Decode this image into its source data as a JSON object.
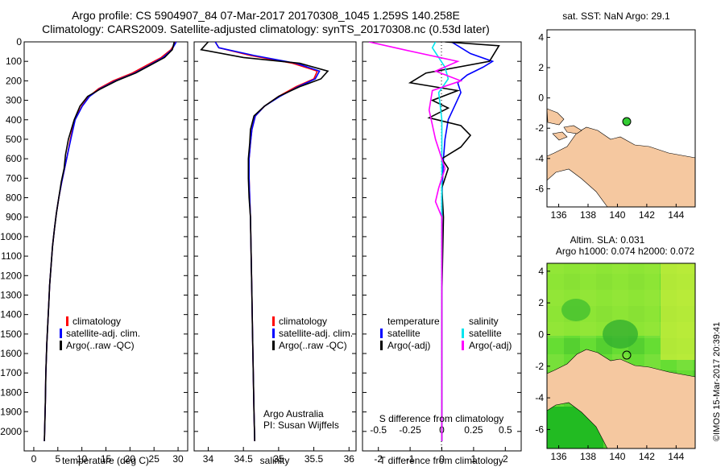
{
  "header": {
    "line1": "Argo profile: CS 5904907_84 07-Mar-2017 20170308_1045 1.259S 140.258E",
    "line2": "Climatology: CARS2009. Satellite-adjusted climatology: synTS_20170308.nc (0.53d later)"
  },
  "colors": {
    "climatology": "#ff0000",
    "satellite": "#0000ff",
    "argo": "#000000",
    "salinity_satellite": "#00e5ee",
    "salinity_argo": "#ff00ff",
    "land": "#f5c8a0",
    "argo_marker": "#33cc33"
  },
  "chart_data": [
    {
      "type": "line",
      "id": "temperature",
      "xlabel": "temperature (deg C)",
      "ylabel": "",
      "xlim": [
        -2,
        32
      ],
      "ylim": [
        2100,
        0
      ],
      "x_ticks": [
        "0",
        "5",
        "10",
        "15",
        "20",
        "25",
        "30"
      ],
      "y_ticks": [
        "0",
        "100",
        "200",
        "300",
        "400",
        "500",
        "600",
        "700",
        "800",
        "900",
        "1000",
        "1100",
        "1200",
        "1300",
        "1400",
        "1500",
        "1600",
        "1700",
        "1800",
        "1900",
        "2000"
      ],
      "legend": [
        "climatology",
        "satellite-adj. clim.",
        "Argo(..raw -QC)"
      ],
      "series": [
        {
          "name": "climatology",
          "color_key": "climatology",
          "x": [
            29.4,
            29.3,
            28.5,
            26.5,
            23.5,
            20.5,
            16.5,
            13.5,
            11.5,
            10.0,
            8.5,
            7.6,
            7.0,
            6.4,
            5.8,
            5.2,
            4.7,
            4.3,
            3.9,
            3.6,
            3.3,
            3.1,
            2.9,
            2.7,
            2.5,
            2.4,
            2.3,
            2.2
          ],
          "y": [
            0,
            10,
            40,
            80,
            120,
            160,
            200,
            240,
            280,
            330,
            400,
            500,
            580,
            650,
            720,
            800,
            880,
            960,
            1050,
            1150,
            1250,
            1350,
            1450,
            1550,
            1700,
            1850,
            1950,
            2050
          ]
        },
        {
          "name": "satellite-adj. clim.",
          "color_key": "satellite",
          "x": [
            29.6,
            29.4,
            28.7,
            26.9,
            24.0,
            21.0,
            17.0,
            13.8,
            11.6,
            10.1,
            8.6,
            7.7,
            7.0,
            6.4,
            5.8,
            5.2,
            4.7,
            4.3,
            3.9,
            3.6,
            3.3,
            3.1,
            2.9,
            2.7,
            2.5,
            2.4,
            2.3,
            2.2
          ],
          "y": [
            0,
            10,
            40,
            80,
            120,
            160,
            200,
            240,
            280,
            330,
            400,
            500,
            580,
            650,
            720,
            800,
            880,
            960,
            1050,
            1150,
            1250,
            1350,
            1450,
            1550,
            1700,
            1850,
            1950,
            2050
          ]
        },
        {
          "name": "Argo(..raw -QC)",
          "color_key": "argo",
          "x": [
            29.2,
            29.1,
            28.8,
            27.2,
            24.2,
            21.2,
            17.2,
            14.0,
            11.2,
            9.6,
            8.4,
            7.2,
            6.6,
            6.3,
            5.7,
            5.2,
            4.7,
            4.3,
            3.9,
            3.6,
            3.3,
            3.1,
            2.9,
            2.7,
            2.5,
            2.4,
            2.3,
            2.2
          ],
          "y": [
            0,
            10,
            40,
            80,
            120,
            160,
            200,
            240,
            280,
            330,
            400,
            500,
            580,
            650,
            720,
            800,
            880,
            960,
            1050,
            1150,
            1250,
            1350,
            1450,
            1550,
            1700,
            1850,
            1950,
            2050
          ]
        }
      ]
    },
    {
      "type": "line",
      "id": "salinity",
      "xlabel": "salinity",
      "xlim": [
        33.8,
        36.1
      ],
      "ylim": [
        2100,
        0
      ],
      "x_ticks": [
        "34",
        "34.5",
        "35",
        "35.5",
        "36"
      ],
      "legend": [
        "climatology",
        "satellite-adj. clim.",
        "Argo(..raw -QC)"
      ],
      "annotation": [
        "Argo Australia",
        "PI: Susan Wijffels"
      ],
      "series": [
        {
          "name": "climatology",
          "color_key": "climatology",
          "x": [
            34.1,
            34.15,
            34.6,
            35.2,
            35.55,
            35.5,
            35.25,
            35.0,
            34.8,
            34.67,
            34.62,
            34.6,
            34.58,
            34.58,
            34.59,
            34.6,
            34.61,
            34.62,
            34.63,
            34.64,
            34.65,
            34.66
          ],
          "y": [
            0,
            30,
            70,
            110,
            150,
            190,
            230,
            280,
            330,
            380,
            450,
            520,
            600,
            700,
            800,
            900,
            1100,
            1300,
            1500,
            1700,
            1900,
            2050
          ]
        },
        {
          "name": "satellite-adj. clim.",
          "color_key": "satellite",
          "x": [
            34.1,
            34.15,
            34.65,
            35.25,
            35.58,
            35.52,
            35.28,
            35.02,
            34.8,
            34.67,
            34.62,
            34.6,
            34.58,
            34.58,
            34.59,
            34.6,
            34.61,
            34.62,
            34.63,
            34.64,
            34.65,
            34.66
          ],
          "y": [
            0,
            30,
            70,
            110,
            150,
            190,
            230,
            280,
            330,
            380,
            450,
            520,
            600,
            700,
            800,
            900,
            1100,
            1300,
            1500,
            1700,
            1900,
            2050
          ]
        },
        {
          "name": "Argo(..raw -QC)",
          "color_key": "argo",
          "x": [
            34.0,
            33.9,
            34.5,
            35.3,
            35.7,
            35.6,
            35.3,
            35.0,
            34.8,
            34.65,
            34.6,
            34.59,
            34.57,
            34.57,
            34.58,
            34.6,
            34.61,
            34.62,
            34.63,
            34.64,
            34.65,
            34.66
          ],
          "y": [
            0,
            40,
            80,
            110,
            150,
            190,
            230,
            280,
            330,
            380,
            450,
            520,
            600,
            700,
            800,
            900,
            1100,
            1300,
            1500,
            1700,
            1900,
            2050
          ]
        }
      ]
    },
    {
      "type": "line",
      "id": "difference",
      "xlabel": "T difference from climatology",
      "top_label": "S difference from climatology",
      "xlim": [
        -2.5,
        2.5
      ],
      "ylim": [
        2100,
        0
      ],
      "x_ticks": [
        "-2",
        "-1",
        "0",
        "1",
        "2"
      ],
      "top_ticks": [
        {
          "label": "-0.5",
          "value": -2
        },
        {
          "label": "-0.25",
          "value": -1
        },
        {
          "label": "0",
          "value": 0
        },
        {
          "label": "0.25",
          "value": 1
        },
        {
          "label": "0.5",
          "value": 2
        }
      ],
      "legend_left_title": "temperature",
      "legend_right_title": "salinity",
      "legend_left": [
        "satellite",
        "Argo(-adj)"
      ],
      "legend_right": [
        "satellite",
        "Argo(-adj)"
      ],
      "series": [
        {
          "name": "temperature satellite",
          "color_key": "satellite",
          "x": [
            0.3,
            0.5,
            0.9,
            1.6,
            1.3,
            0.8,
            0.5,
            0.6,
            0.4,
            0.2,
            0.1,
            0.05,
            0.0,
            0.0,
            0.0,
            0.0,
            0.0
          ],
          "y": [
            0,
            20,
            60,
            100,
            130,
            170,
            210,
            260,
            330,
            400,
            500,
            600,
            800,
            1000,
            1300,
            1700,
            2050
          ]
        },
        {
          "name": "temperature Argo(-adj)",
          "color_key": "argo",
          "x": [
            0.1,
            1.8,
            1.5,
            -0.5,
            -1.0,
            0.5,
            -0.3,
            0.2,
            -0.4,
            0.6,
            0.9,
            0.6,
            0.0,
            0.2,
            0.0,
            0.05,
            0.0,
            0.0
          ],
          "y": [
            0,
            20,
            100,
            160,
            210,
            250,
            300,
            340,
            390,
            430,
            480,
            540,
            600,
            650,
            750,
            900,
            1300,
            2050
          ]
        },
        {
          "name": "salinity satellite",
          "color_key": "salinity_satellite",
          "x": [
            -0.2,
            -0.3,
            -0.1,
            0.1,
            0.2,
            -0.1,
            0.0,
            0.0,
            0.0,
            0.0
          ],
          "y": [
            0,
            30,
            80,
            130,
            190,
            260,
            400,
            800,
            1400,
            2050
          ]
        },
        {
          "name": "salinity Argo(-adj)",
          "color_key": "salinity_argo",
          "x": [
            -2.3,
            -1.2,
            0.5,
            -0.2,
            0.6,
            -0.3,
            -0.4,
            -0.2,
            0.1,
            -0.1,
            -0.2,
            0.0,
            0.0
          ],
          "y": [
            0,
            40,
            100,
            150,
            200,
            250,
            350,
            500,
            650,
            750,
            820,
            900,
            2050
          ]
        }
      ]
    },
    {
      "type": "map",
      "id": "sst_map",
      "title": "sat. SST: NaN Argo: 29.1",
      "x_ticks": [
        "136",
        "138",
        "140",
        "142",
        "144"
      ],
      "y_ticks": [
        "4",
        "2",
        "0",
        "-2",
        "-4",
        "-6"
      ],
      "xlim": [
        135.2,
        145.3
      ],
      "ylim": [
        -7.2,
        4.5
      ],
      "argo_position": {
        "lon": 140.258,
        "lat": -1.259
      }
    },
    {
      "type": "heatmap",
      "id": "sla_map",
      "title_line1": "Altim. SLA: 0.031",
      "title_line2": "Argo h1000: 0.074 h2000: 0.072",
      "x_ticks": [
        "136",
        "138",
        "140",
        "142",
        "144"
      ],
      "y_ticks": [
        "4",
        "2",
        "0",
        "-2",
        "-4",
        "-6"
      ],
      "xlim": [
        135.2,
        145.3
      ],
      "ylim": [
        -7.2,
        4.5
      ],
      "argo_position": {
        "lon": 140.258,
        "lat": -1.259
      }
    }
  ],
  "footer": {
    "credit": "©IMOS 15-Mar-2017 20:39:41"
  }
}
